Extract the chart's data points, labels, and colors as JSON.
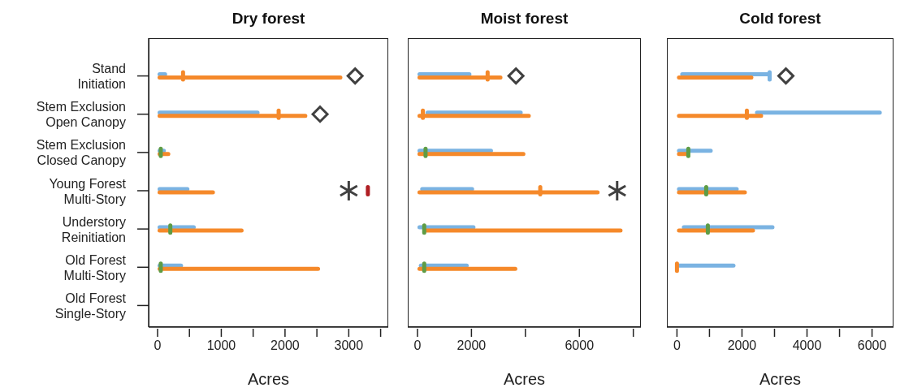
{
  "chart_data": [
    {
      "type": "bar",
      "orientation": "horizontal",
      "title": "Dry forest",
      "xlabel": "Acres",
      "categories": [
        "Stand\nInitiation",
        "Stem Exclusion\nOpen Canopy",
        "Stem Exclusion\nClosed Canopy",
        "Young Forest\nMulti-Story",
        "Understory\nReinitiation",
        "Old Forest\nMulti-Story",
        "Old Forest\nSingle-Story"
      ],
      "xlim": [
        -140,
        3620
      ],
      "xticks": [
        0,
        {
          "value": 500,
          "label": null
        },
        1000,
        {
          "value": 1500,
          "label": null
        },
        2000,
        {
          "value": 2500,
          "label": null
        },
        3000,
        {
          "value": 3500,
          "label": null
        }
      ],
      "series": [
        {
          "color": "#7ab3e2",
          "base": [
            0,
            0,
            0,
            0,
            0,
            0,
            null
          ],
          "values": [
            150,
            1600,
            130,
            500,
            600,
            400,
            null
          ]
        },
        {
          "color": "#f5892a",
          "base": [
            0,
            0,
            0,
            0,
            0,
            0,
            null
          ],
          "values": [
            2900,
            2350,
            200,
            900,
            1350,
            2550,
            null
          ]
        },
        {
          "type": "scatter",
          "marker": "square",
          "color": "#f5892a",
          "values": [
            400,
            1900,
            null,
            null,
            null,
            null,
            null
          ]
        },
        {
          "type": "scatter",
          "marker": "square",
          "color": "#5e9c45",
          "values": [
            null,
            null,
            50,
            null,
            200,
            50,
            null
          ]
        },
        {
          "type": "scatter",
          "marker": "square",
          "color": "#b01e23",
          "values": [
            null,
            null,
            null,
            3300,
            null,
            null,
            null
          ]
        },
        {
          "type": "scatter",
          "marker": "diamond",
          "color": "#404040",
          "values": [
            3100,
            2550,
            null,
            null,
            null,
            null,
            null
          ]
        },
        {
          "type": "scatter",
          "marker": "cross",
          "color": "#404040",
          "values": [
            null,
            null,
            null,
            3000,
            null,
            null,
            null
          ]
        }
      ]
    },
    {
      "type": "bar",
      "orientation": "horizontal",
      "title": "Moist forest",
      "xlabel": "Acres",
      "tick_labels": "x",
      "categories": [
        null,
        null,
        null,
        null,
        null,
        null,
        null
      ],
      "xlim": [
        -360,
        8280
      ],
      "xticks": [
        0,
        2000,
        {
          "value": 4000,
          "label": null
        },
        6000,
        {
          "value": 8000,
          "label": null
        }
      ],
      "series": [
        {
          "color": "#7ab3e2",
          "base": [
            0,
            300,
            0,
            100,
            0,
            50,
            null
          ],
          "values": [
            2000,
            3600,
            2800,
            2000,
            2150,
            1850,
            null
          ]
        },
        {
          "color": "#f5892a",
          "base": [
            0,
            0,
            0,
            0,
            200,
            0,
            null
          ],
          "values": [
            3150,
            4200,
            4000,
            6750,
            7400,
            3700,
            null
          ]
        },
        {
          "type": "scatter",
          "marker": "square",
          "color": "#f5892a",
          "values": [
            2600,
            200,
            null,
            4550,
            null,
            null,
            null
          ]
        },
        {
          "type": "scatter",
          "marker": "square",
          "color": "#5e9c45",
          "values": [
            null,
            null,
            300,
            null,
            250,
            250,
            null
          ]
        },
        {
          "type": "scatter",
          "marker": "diamond",
          "color": "#404040",
          "values": [
            3650,
            null,
            null,
            null,
            null,
            null,
            null
          ]
        },
        {
          "type": "scatter",
          "marker": "cross",
          "color": "#404040",
          "values": [
            null,
            null,
            null,
            7400,
            null,
            null,
            null
          ]
        }
      ]
    },
    {
      "type": "bar",
      "orientation": "horizontal",
      "title": "Cold forest",
      "xlabel": "Acres",
      "tick_labels": "x",
      "categories": [
        null,
        null,
        null,
        null,
        null,
        null,
        null
      ],
      "xlim": [
        -310,
        6660
      ],
      "xticks": [
        0,
        {
          "value": 1000,
          "label": null
        },
        2000,
        {
          "value": 3000,
          "label": null
        },
        4000,
        {
          "value": 5000,
          "label": null
        },
        6000
      ],
      "series": [
        {
          "color": "#7ab3e2",
          "base": [
            100,
            2400,
            0,
            0,
            150,
            0,
            null
          ],
          "values": [
            2750,
            3900,
            1100,
            1900,
            2850,
            1800,
            null
          ]
        },
        {
          "color": "#f5892a",
          "base": [
            0,
            0,
            0,
            0,
            0,
            null,
            null
          ],
          "values": [
            2350,
            2650,
            350,
            2150,
            2400,
            null,
            null
          ]
        },
        {
          "type": "scatter",
          "marker": "square",
          "color": "#7ab3e2",
          "values": [
            2850,
            null,
            null,
            null,
            null,
            null,
            null
          ]
        },
        {
          "type": "scatter",
          "marker": "square",
          "color": "#f5892a",
          "values": [
            null,
            2150,
            null,
            null,
            null,
            0,
            null
          ]
        },
        {
          "type": "scatter",
          "marker": "square",
          "color": "#5e9c45",
          "values": [
            null,
            null,
            350,
            900,
            950,
            null,
            null
          ]
        },
        {
          "type": "scatter",
          "marker": "diamond",
          "color": "#404040",
          "values": [
            3350,
            null,
            null,
            null,
            null,
            null,
            null
          ]
        }
      ]
    }
  ]
}
